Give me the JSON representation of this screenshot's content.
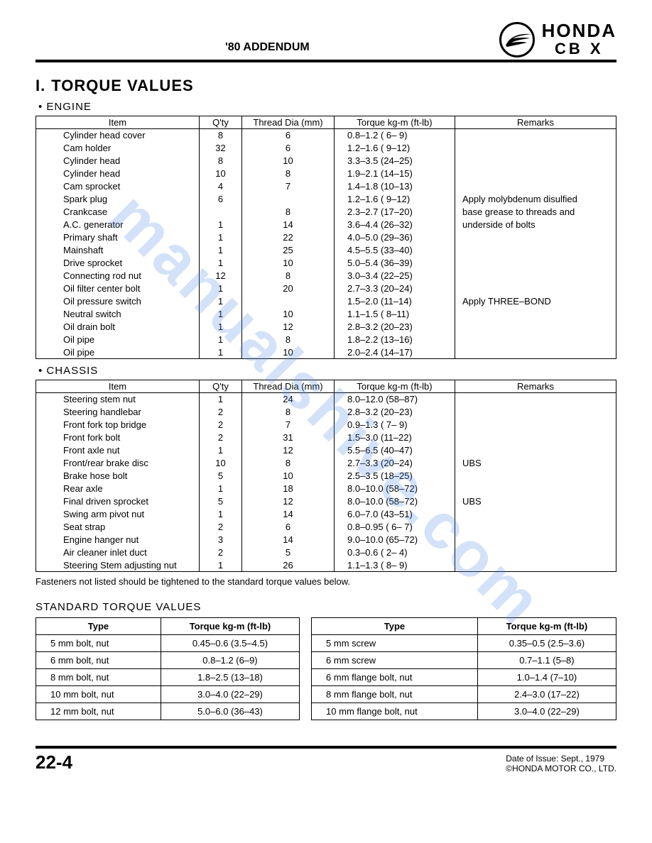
{
  "header": {
    "addendum": "'80 ADDENDUM",
    "brand": "HONDA",
    "model": "CB X"
  },
  "section": {
    "number": "I.",
    "title": "TORQUE VALUES"
  },
  "engine": {
    "label": "• ENGINE",
    "columns": [
      "Item",
      "Q'ty",
      "Thread Dia (mm)",
      "Torque kg-m (ft-lb)",
      "Remarks"
    ],
    "rows": [
      {
        "item": "Cylinder head cover",
        "qty": "8",
        "thread": "6",
        "torque": "0.8–1.2 ( 6– 9)",
        "remarks": ""
      },
      {
        "item": "Cam holder",
        "qty": "32",
        "thread": "6",
        "torque": "1.2–1.6 ( 9–12)",
        "remarks": ""
      },
      {
        "item": "Cylinder head",
        "qty": "8",
        "thread": "10",
        "torque": "3.3–3.5 (24–25)",
        "remarks": ""
      },
      {
        "item": "Cylinder head",
        "qty": "10",
        "thread": "8",
        "torque": "1.9–2.1 (14–15)",
        "remarks": ""
      },
      {
        "item": "Cam sprocket",
        "qty": "4",
        "thread": "7",
        "torque": "1.4–1.8 (10–13)",
        "remarks": ""
      },
      {
        "item": "Spark plug",
        "qty": "6",
        "thread": "",
        "torque": "1.2–1.6 ( 9–12)",
        "remarks": "Apply molybdenum disulfied"
      },
      {
        "item": "Crankcase",
        "qty": "",
        "thread": "8",
        "torque": "2.3–2.7 (17–20)",
        "remarks": "base grease to threads and"
      },
      {
        "item": "A.C. generator",
        "qty": "1",
        "thread": "14",
        "torque": "3.6–4.4 (26–32)",
        "remarks": "underside of bolts"
      },
      {
        "item": "Primary shaft",
        "qty": "1",
        "thread": "22",
        "torque": "4.0–5.0 (29–36)",
        "remarks": ""
      },
      {
        "item": "Mainshaft",
        "qty": "1",
        "thread": "25",
        "torque": "4.5–5.5 (33–40)",
        "remarks": ""
      },
      {
        "item": "Drive sprocket",
        "qty": "1",
        "thread": "10",
        "torque": "5.0–5.4 (36–39)",
        "remarks": ""
      },
      {
        "item": "Connecting rod nut",
        "qty": "12",
        "thread": "8",
        "torque": "3.0–3.4 (22–25)",
        "remarks": ""
      },
      {
        "item": "Oil filter center bolt",
        "qty": "1",
        "thread": "20",
        "torque": "2.7–3.3 (20–24)",
        "remarks": ""
      },
      {
        "item": "Oil pressure switch",
        "qty": "1",
        "thread": "",
        "torque": "1.5–2.0 (11–14)",
        "remarks": "Apply THREE–BOND"
      },
      {
        "item": "Neutral switch",
        "qty": "1",
        "thread": "10",
        "torque": "1.1–1.5 ( 8–11)",
        "remarks": ""
      },
      {
        "item": "Oil drain bolt",
        "qty": "1",
        "thread": "12",
        "torque": "2.8–3.2 (20–23)",
        "remarks": ""
      },
      {
        "item": "Oil pipe",
        "qty": "1",
        "thread": "8",
        "torque": "1.8–2.2 (13–16)",
        "remarks": ""
      },
      {
        "item": "Oil pipe",
        "qty": "1",
        "thread": "10",
        "torque": "2.0–2.4 (14–17)",
        "remarks": ""
      }
    ]
  },
  "chassis": {
    "label": "• CHASSIS",
    "columns": [
      "Item",
      "Q'ty",
      "Thread Dia (mm)",
      "Torque kg-m (ft-lb)",
      "Remarks"
    ],
    "rows": [
      {
        "item": "Steering stem nut",
        "qty": "1",
        "thread": "24",
        "torque": "8.0–12.0 (58–87)",
        "remarks": ""
      },
      {
        "item": "Steering handlebar",
        "qty": "2",
        "thread": "8",
        "torque": "2.8–3.2 (20–23)",
        "remarks": ""
      },
      {
        "item": "Front fork top bridge",
        "qty": "2",
        "thread": "7",
        "torque": "0.9–1.3 ( 7– 9)",
        "remarks": ""
      },
      {
        "item": "Front fork bolt",
        "qty": "2",
        "thread": "31",
        "torque": "1.5–3.0 (11–22)",
        "remarks": ""
      },
      {
        "item": "Front axle nut",
        "qty": "1",
        "thread": "12",
        "torque": "5.5–6.5 (40–47)",
        "remarks": ""
      },
      {
        "item": "Front/rear brake disc",
        "qty": "10",
        "thread": "8",
        "torque": "2.7–3.3 (20–24)",
        "remarks": "UBS"
      },
      {
        "item": "Brake hose bolt",
        "qty": "5",
        "thread": "10",
        "torque": "2.5–3.5 (18–25)",
        "remarks": ""
      },
      {
        "item": "Rear axle",
        "qty": "1",
        "thread": "18",
        "torque": "8.0–10.0 (58–72)",
        "remarks": ""
      },
      {
        "item": "Final driven sprocket",
        "qty": "5",
        "thread": "12",
        "torque": "8.0–10.0 (58–72)",
        "remarks": "UBS"
      },
      {
        "item": "Swing arm pivot nut",
        "qty": "1",
        "thread": "14",
        "torque": "6.0–7.0 (43–51)",
        "remarks": ""
      },
      {
        "item": "Seat strap",
        "qty": "2",
        "thread": "6",
        "torque": "0.8–0.95 ( 6– 7)",
        "remarks": ""
      },
      {
        "item": "Engine hanger nut",
        "qty": "3",
        "thread": "14",
        "torque": "9.0–10.0 (65–72)",
        "remarks": ""
      },
      {
        "item": "Air cleaner inlet duct",
        "qty": "2",
        "thread": "5",
        "torque": "0.3–0.6 ( 2– 4)",
        "remarks": ""
      },
      {
        "item": "Steering Stem adjusting nut",
        "qty": "1",
        "thread": "26",
        "torque": "1.1–1.3 ( 8– 9)",
        "remarks": ""
      }
    ]
  },
  "note": "Fasteners not listed should be tightened to the standard torque values below.",
  "standard": {
    "title": "STANDARD TORQUE VALUES",
    "headers": [
      "Type",
      "Torque kg-m (ft-lb)",
      "Type",
      "Torque kg-m (ft-lb)"
    ],
    "rows": [
      [
        "5 mm bolt, nut",
        "0.45–0.6 (3.5–4.5)",
        "5 mm screw",
        "0.35–0.5 (2.5–3.6)"
      ],
      [
        "6 mm bolt, nut",
        "0.8–1.2 (6–9)",
        "6 mm screw",
        "0.7–1.1 (5–8)"
      ],
      [
        "8 mm bolt, nut",
        "1.8–2.5 (13–18)",
        "6 mm flange bolt, nut",
        "1.0–1.4 (7–10)"
      ],
      [
        "10 mm bolt, nut",
        "3.0–4.0 (22–29)",
        "8 mm flange bolt, nut",
        "2.4–3.0 (17–22)"
      ],
      [
        "12 mm bolt, nut",
        "5.0–6.0 (36–43)",
        "10 mm flange bolt, nut",
        "3.0–4.0 (22–29)"
      ]
    ]
  },
  "footer": {
    "page": "22-4",
    "date": "Date of Issue: Sept., 1979",
    "copyright": "©HONDA MOTOR CO., LTD."
  },
  "watermark": "manualshive.com"
}
